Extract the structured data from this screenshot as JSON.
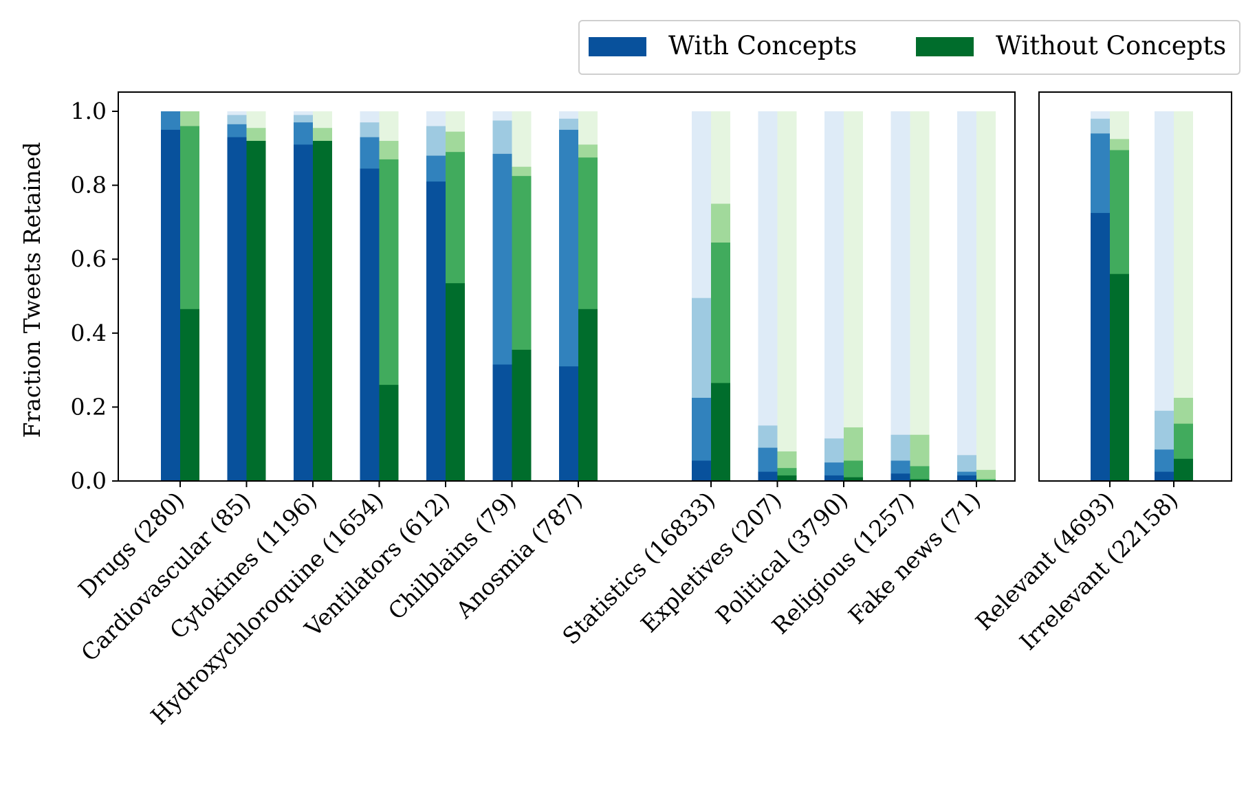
{
  "chart_data": {
    "type": "bar",
    "ylabel": "Fraction Tweets Retained",
    "ylim": [
      0,
      1.05
    ],
    "yticks": [
      "0.0",
      "0.2",
      "0.4",
      "0.6",
      "0.8",
      "1.0"
    ],
    "ytick_values": [
      0,
      0.2,
      0.4,
      0.6,
      0.8,
      1.0
    ],
    "grid": false,
    "legend": {
      "placement": "top-right, above plot",
      "entries": [
        {
          "label": "With Concepts",
          "color": "#08519c"
        },
        {
          "label": "Without Concepts",
          "color": "#006d2c"
        }
      ]
    },
    "stack_levels_note": "",
    "series": [
      {
        "name": "With Concepts",
        "colors": [
          "#08519c",
          "#3182bd",
          "#9ecae1",
          "#deebf7"
        ]
      },
      {
        "name": "Without Concepts",
        "colors": [
          "#006d2c",
          "#41ab5d",
          "#a1d99b",
          "#e5f5e0"
        ]
      }
    ],
    "panels": [
      {
        "categories": [
          {
            "label": "Drugs (280)",
            "with": [
              0.95,
              1.0,
              1.0,
              1.0
            ],
            "without": [
              0.465,
              0.96,
              1.0,
              1.0
            ]
          },
          {
            "label": "Cardiovascular (85)",
            "with": [
              0.93,
              0.965,
              0.99,
              1.0
            ],
            "without": [
              0.92,
              0.92,
              0.955,
              1.0
            ]
          },
          {
            "label": "Cytokines (1196)",
            "with": [
              0.91,
              0.97,
              0.99,
              1.0
            ],
            "without": [
              0.92,
              0.92,
              0.955,
              1.0
            ]
          },
          {
            "label": "Hydroxychloroquine (1654)",
            "with": [
              0.845,
              0.93,
              0.97,
              1.0
            ],
            "without": [
              0.26,
              0.87,
              0.92,
              1.0
            ]
          },
          {
            "label": "Ventilators (612)",
            "with": [
              0.81,
              0.88,
              0.96,
              1.0
            ],
            "without": [
              0.535,
              0.89,
              0.945,
              1.0
            ]
          },
          {
            "label": "Chilblains (79)",
            "with": [
              0.315,
              0.885,
              0.975,
              1.0
            ],
            "without": [
              0.355,
              0.825,
              0.85,
              1.0
            ]
          },
          {
            "label": "Anosmia (787)",
            "with": [
              0.31,
              0.95,
              0.98,
              1.0
            ],
            "without": [
              0.465,
              0.875,
              0.91,
              1.0
            ]
          },
          {
            "label": "",
            "with": null,
            "without": null
          },
          {
            "label": "Statistics (16833)",
            "with": [
              0.055,
              0.225,
              0.495,
              1.0
            ],
            "without": [
              0.265,
              0.645,
              0.75,
              1.0
            ]
          },
          {
            "label": "Expletives (207)",
            "with": [
              0.025,
              0.09,
              0.15,
              1.0
            ],
            "without": [
              0.015,
              0.035,
              0.08,
              1.0
            ]
          },
          {
            "label": "Political (3790)",
            "with": [
              0.015,
              0.05,
              0.115,
              1.0
            ],
            "without": [
              0.01,
              0.055,
              0.145,
              1.0
            ]
          },
          {
            "label": "Religious (1257)",
            "with": [
              0.02,
              0.055,
              0.125,
              1.0
            ],
            "without": [
              0.005,
              0.04,
              0.125,
              1.0
            ]
          },
          {
            "label": "Fake news (71)",
            "with": [
              0.015,
              0.025,
              0.07,
              1.0
            ],
            "without": [
              0.0,
              0.005,
              0.03,
              1.0
            ]
          }
        ]
      },
      {
        "categories": [
          {
            "label": "Relevant (4693)",
            "with": [
              0.725,
              0.94,
              0.98,
              1.0
            ],
            "without": [
              0.56,
              0.895,
              0.925,
              1.0
            ]
          },
          {
            "label": "Irrelevant (22158)",
            "with": [
              0.025,
              0.085,
              0.19,
              1.0
            ],
            "without": [
              0.06,
              0.155,
              0.225,
              1.0
            ]
          }
        ]
      }
    ]
  }
}
